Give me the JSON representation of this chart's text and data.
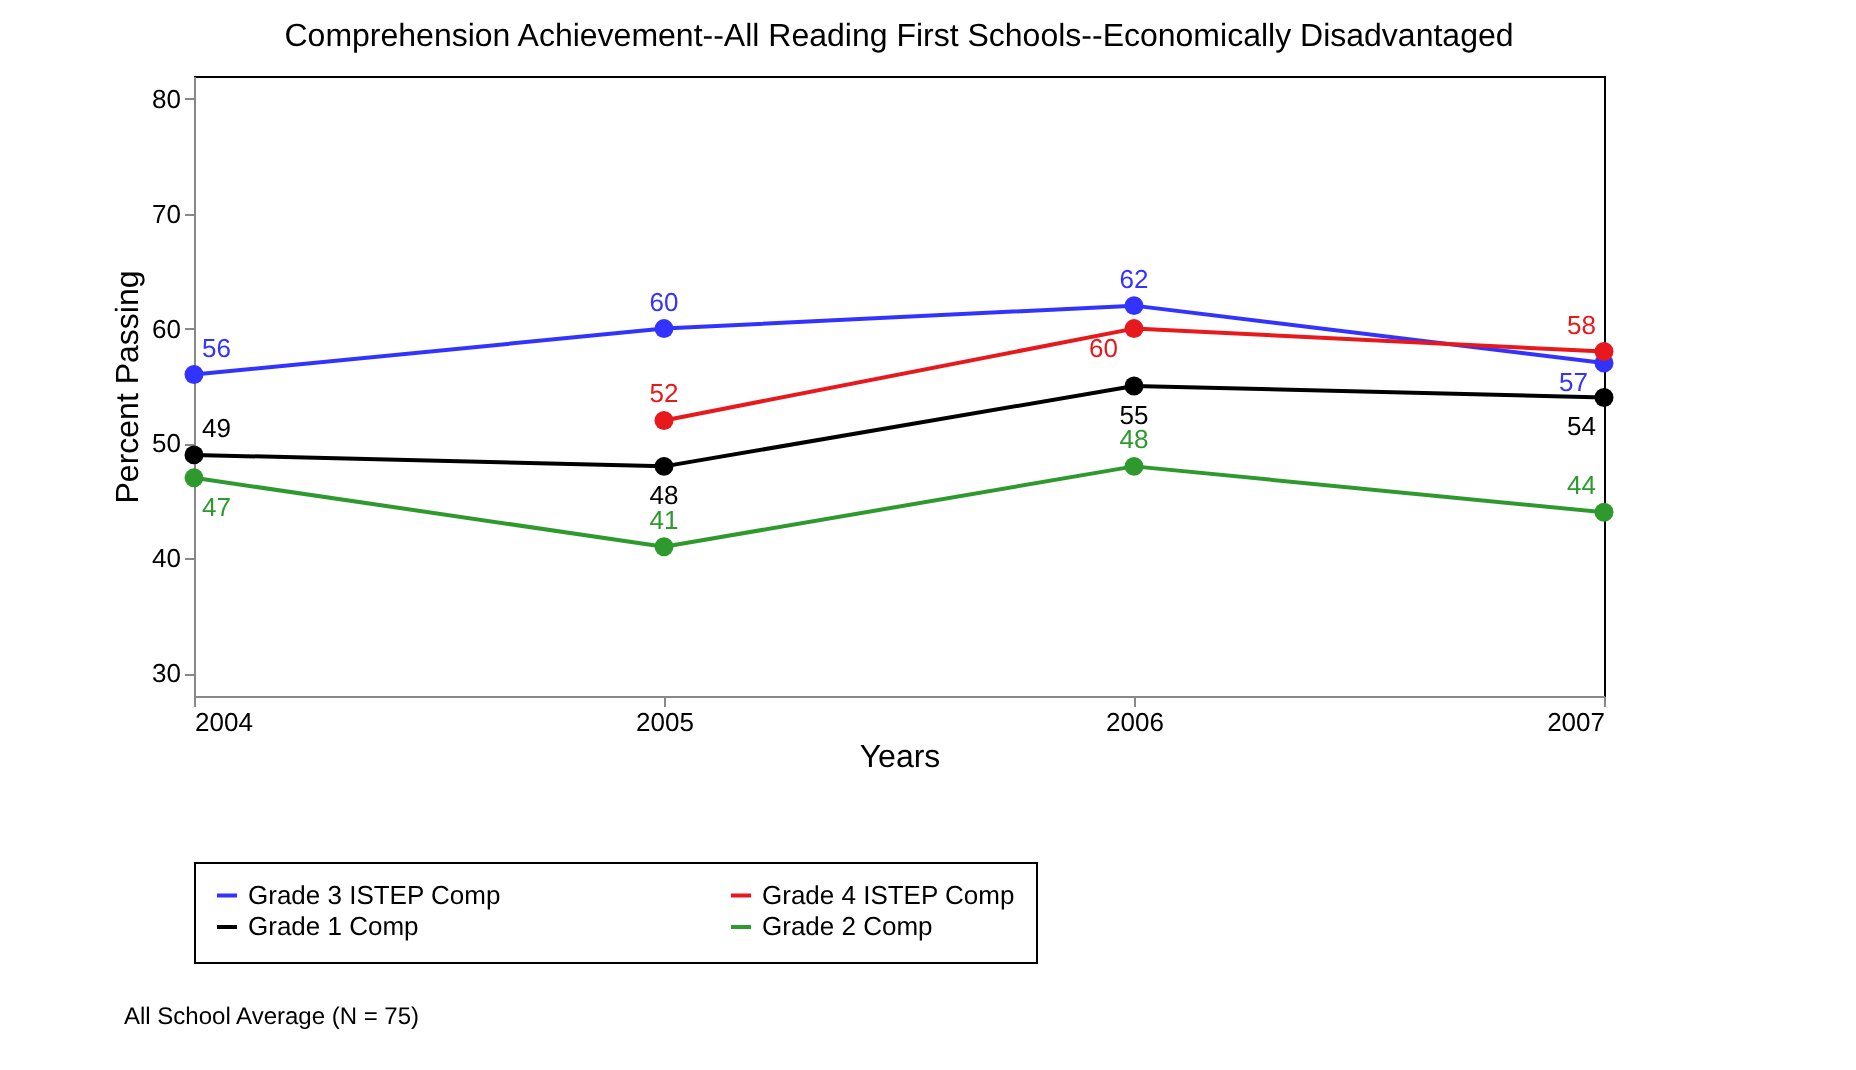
{
  "chart_data": {
    "type": "line",
    "title": "Comprehension Achievement--All Reading First Schools--Economically Disadvantaged",
    "xlabel": "Years",
    "ylabel": "Percent Passing",
    "x": [
      2004,
      2005,
      2006,
      2007
    ],
    "series": [
      {
        "name": "Grade 3 ISTEP Comp",
        "color": "#3333ff",
        "values": [
          56,
          60,
          62,
          57
        ]
      },
      {
        "name": "Grade 4 ISTEP Comp",
        "color": "#e8191c",
        "values": [
          null,
          52,
          60,
          58
        ]
      },
      {
        "name": "Grade 1 Comp",
        "color": "#000000",
        "values": [
          49,
          48,
          55,
          54
        ]
      },
      {
        "name": "Grade 2 Comp",
        "color": "#2e9a2e",
        "values": [
          47,
          41,
          48,
          44
        ]
      }
    ],
    "xlim": [
      2004,
      2007
    ],
    "xticks": [
      2004,
      2005,
      2006,
      2007
    ],
    "ylim": [
      28,
      82
    ],
    "yticks": [
      30,
      40,
      50,
      60,
      70,
      80
    ],
    "data_labels": true,
    "marker": "circle",
    "line_style": "solid",
    "grid": false,
    "legend": "bottom",
    "annotations": [
      "All School Average (N = 75)"
    ]
  }
}
